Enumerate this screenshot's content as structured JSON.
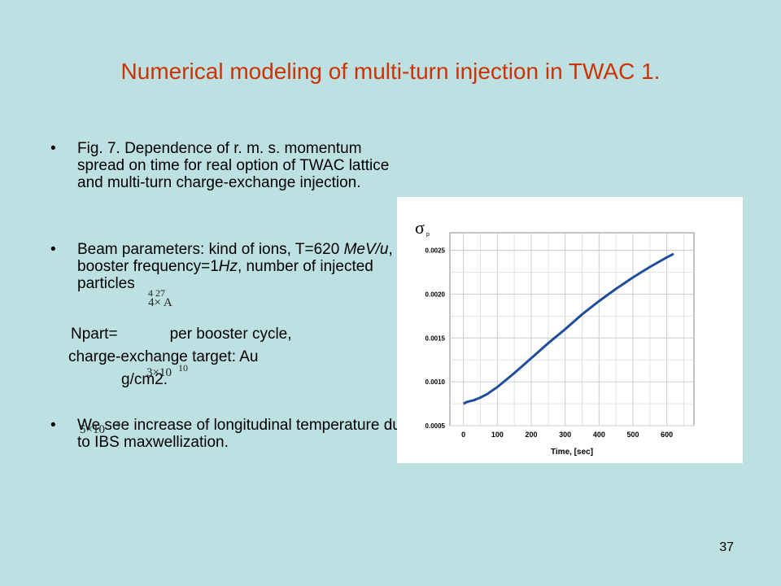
{
  "slide": {
    "title": "Numerical modeling of multi-turn injection in TWAC 1.",
    "bullet_glyph": "•",
    "bullets": [
      {
        "text": "Fig. 7.  Dependence of r. m. s. momentum spread on time for real option of TWAC lattice and multi-turn charge-exchange injection."
      },
      {
        "text_a": " Beam parameters:  kind of ions, T=620 ",
        "text_b": "MeV/u",
        "text_c": ", booster frequency=1",
        "text_d": "Hz",
        "text_e": ", number of injected particles"
      },
      {
        "text": "We see increase of longitudinal temperature due to IBS maxwellization."
      }
    ],
    "npart_label": "Npart=",
    "npart_suffix": "per booster cycle,",
    "target_line": "charge-exchange target: Au",
    "units_line": "g/cm2.",
    "overlays": {
      "ion_sup": "4  27",
      "ion_base": "4×  A",
      "npart_value": "3×10",
      "npart_exp": "10",
      "target_value": "5×10",
      "target_exp": "-4"
    },
    "page_number": "37"
  },
  "chart_data": {
    "type": "line",
    "ylabel": "σ",
    "ylabel_sub": "p",
    "xlabel": "Time, [sec]",
    "xlim": [
      -40,
      680
    ],
    "ylim": [
      0.0005,
      0.0027
    ],
    "xticks": [
      "0",
      "100",
      "200",
      "300",
      "400",
      "500",
      "600"
    ],
    "yticks": [
      "0.0005",
      "0.0010",
      "0.0015",
      "0.0020",
      "0.0025"
    ],
    "grid": true,
    "line_color": "#1f4e9c",
    "x": [
      0,
      10,
      20,
      30,
      50,
      70,
      100,
      150,
      200,
      250,
      300,
      350,
      400,
      450,
      500,
      550,
      600,
      620
    ],
    "y": [
      0.00075,
      0.00077,
      0.00078,
      0.00079,
      0.00082,
      0.00086,
      0.00094,
      0.0011,
      0.00127,
      0.00144,
      0.0016,
      0.00177,
      0.00192,
      0.00206,
      0.00219,
      0.00231,
      0.00242,
      0.00246
    ]
  }
}
